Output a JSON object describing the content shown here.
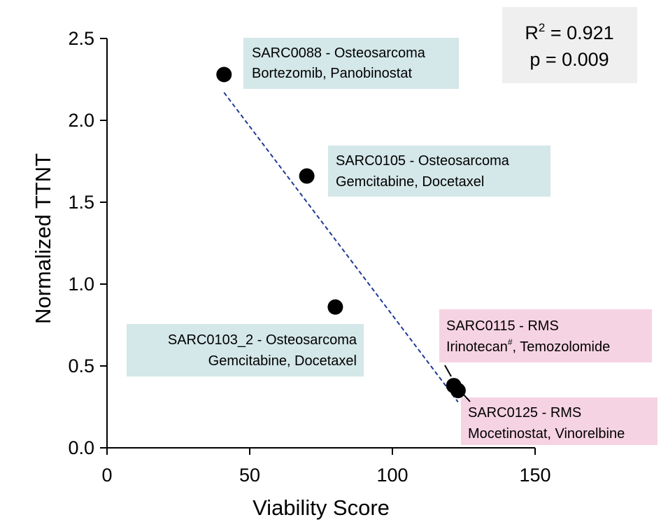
{
  "chart_data": {
    "type": "scatter",
    "xlabel": "Viability Score",
    "ylabel": "Normalized TTNT",
    "xlim": [
      0,
      150
    ],
    "ylim": [
      0,
      2.5
    ],
    "xticks": [
      "0",
      "50",
      "100",
      "150"
    ],
    "yticks": [
      "0.0",
      "0.5",
      "1.0",
      "1.5",
      "2.0",
      "2.5"
    ],
    "grid": false,
    "points": [
      {
        "x": 41,
        "y": 2.28
      },
      {
        "x": 70,
        "y": 1.66
      },
      {
        "x": 80,
        "y": 0.86
      },
      {
        "x": 121.5,
        "y": 0.38
      },
      {
        "x": 123,
        "y": 0.35
      }
    ],
    "regression_line": {
      "x": [
        41,
        123
      ],
      "y": [
        2.17,
        0.28
      ]
    },
    "stats": {
      "r2_label": "R",
      "r2_sup": "2",
      "r2_value": " = 0.921",
      "p_text": "p = 0.009"
    },
    "annotations": [
      {
        "line1": "SARC0088 - Osteosarcoma",
        "line2": "Bortezomib, Panobinostat",
        "category": "osteosarcoma"
      },
      {
        "line1": "SARC0105 - Osteosarcoma",
        "line2": "Gemcitabine, Docetaxel",
        "category": "osteosarcoma"
      },
      {
        "line1": "SARC0103_2 - Osteosarcoma",
        "line2": "Gemcitabine, Docetaxel",
        "category": "osteosarcoma"
      },
      {
        "line1": "SARC0115 - RMS",
        "line2a": "Irinotecan",
        "line2sup": "#",
        "line2b": ", Temozolomide",
        "category": "rms"
      },
      {
        "line1": "SARC0125 - RMS",
        "line2": "Mocetinostat, Vinorelbine",
        "category": "rms"
      }
    ],
    "colors": {
      "osteosarcoma_box": "#d4e7e9",
      "rms_box": "#f6d3e2",
      "stats_box": "#efefef",
      "points": "#000000",
      "regression_line": "#1f3a93"
    }
  }
}
